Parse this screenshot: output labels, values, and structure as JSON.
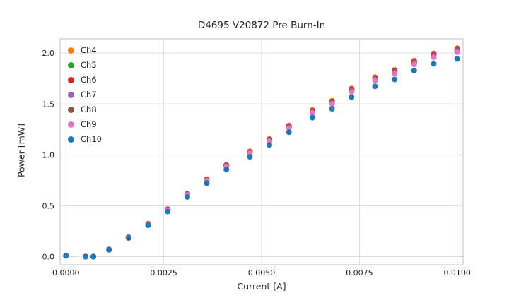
{
  "chart_data": {
    "type": "scatter",
    "title": "D4695 V20872 Pre Burn-In",
    "xlabel": "Current [A]",
    "ylabel": "Power [mW]",
    "grid": true,
    "legend_position": "upper-left",
    "xlim": [
      -0.00015,
      0.01015
    ],
    "ylim": [
      -0.08,
      2.14
    ],
    "xticks": [
      0.0,
      0.0025,
      0.005,
      0.0075,
      0.01
    ],
    "xtick_labels": [
      "0.0000",
      "0.0025",
      "0.0050",
      "0.0075",
      "0.0100"
    ],
    "yticks": [
      0.0,
      0.5,
      1.0,
      1.5,
      2.0
    ],
    "ytick_labels": [
      "0.0",
      "0.5",
      "1.0",
      "1.5",
      "2.0"
    ],
    "x": [
      0.0,
      0.0005,
      0.0007,
      0.0011,
      0.0016,
      0.0021,
      0.0026,
      0.0031,
      0.0036,
      0.0041,
      0.0047,
      0.0052,
      0.0057,
      0.0063,
      0.0068,
      0.0073,
      0.0079,
      0.0084,
      0.0089,
      0.0094,
      0.01
    ],
    "series": [
      {
        "name": "Ch4",
        "color": "#ff7f0e",
        "values": [
          0.01,
          0.0,
          0.001,
          0.071,
          0.193,
          0.324,
          0.466,
          0.619,
          0.761,
          0.902,
          1.034,
          1.156,
          1.288,
          1.44,
          1.531,
          1.653,
          1.764,
          1.835,
          1.927,
          1.998,
          2.048
        ]
      },
      {
        "name": "Ch5",
        "color": "#2ca02c",
        "values": [
          0.01,
          0.0,
          0.0,
          0.07,
          0.191,
          0.322,
          0.463,
          0.614,
          0.755,
          0.895,
          1.026,
          1.147,
          1.278,
          1.429,
          1.519,
          1.64,
          1.75,
          1.821,
          1.911,
          1.982,
          2.032
        ]
      },
      {
        "name": "Ch6",
        "color": "#d62728",
        "values": [
          0.01,
          0.001,
          0.0,
          0.071,
          0.192,
          0.323,
          0.465,
          0.616,
          0.758,
          0.899,
          1.03,
          1.151,
          1.283,
          1.434,
          1.525,
          1.646,
          1.757,
          1.828,
          1.919,
          1.99,
          2.04
        ]
      },
      {
        "name": "Ch7",
        "color": "#9467bd",
        "values": [
          0.011,
          0.0,
          0.0,
          0.07,
          0.191,
          0.321,
          0.461,
          0.612,
          0.752,
          0.893,
          1.023,
          1.143,
          1.274,
          1.424,
          1.515,
          1.635,
          1.745,
          1.815,
          1.906,
          1.976,
          2.026
        ]
      },
      {
        "name": "Ch8",
        "color": "#8c564b",
        "values": [
          0.01,
          0.0,
          0.0,
          0.07,
          0.19,
          0.32,
          0.46,
          0.609,
          0.749,
          0.889,
          1.019,
          1.139,
          1.269,
          1.419,
          1.508,
          1.628,
          1.738,
          1.808,
          1.898,
          1.968,
          2.018
        ]
      },
      {
        "name": "Ch9",
        "color": "#e377c2",
        "values": [
          0.01,
          0.0,
          0.001,
          0.07,
          0.189,
          0.318,
          0.457,
          0.606,
          0.746,
          0.885,
          1.014,
          1.133,
          1.262,
          1.411,
          1.501,
          1.62,
          1.73,
          1.799,
          1.889,
          1.958,
          2.008
        ]
      },
      {
        "name": "Ch10",
        "color": "#1f77b4",
        "values": [
          0.009,
          0.0,
          0.0,
          0.067,
          0.183,
          0.308,
          0.443,
          0.587,
          0.722,
          0.856,
          0.981,
          1.097,
          1.222,
          1.366,
          1.453,
          1.568,
          1.674,
          1.741,
          1.828,
          1.895,
          1.943
        ]
      }
    ],
    "style": {
      "grid_color": "#dcdcdc",
      "axes_edge_color": "#cccccc",
      "text_color": "#262626",
      "marker_radius": 4
    }
  }
}
